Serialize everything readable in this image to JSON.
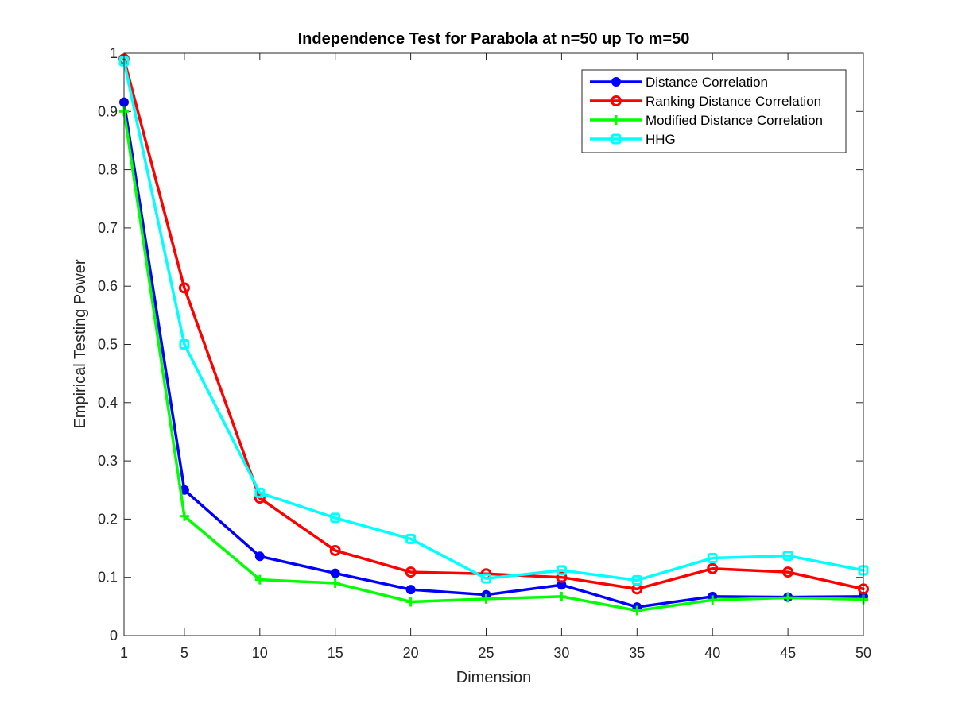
{
  "chart_data": {
    "type": "line",
    "title": "Independence Test for Parabola at n=50 up To m=50",
    "xlabel": "Dimension",
    "ylabel": "Empirical Testing Power",
    "x": [
      1,
      5,
      10,
      15,
      20,
      25,
      30,
      35,
      40,
      45,
      50
    ],
    "xlim": [
      1,
      50
    ],
    "ylim": [
      0,
      1
    ],
    "xticks": [
      "1",
      "5",
      "10",
      "15",
      "20",
      "25",
      "30",
      "35",
      "40",
      "45",
      "50"
    ],
    "yticks": [
      "0",
      "0.1",
      "0.2",
      "0.3",
      "0.4",
      "0.5",
      "0.6",
      "0.7",
      "0.8",
      "0.9",
      "1"
    ],
    "grid": false,
    "legend_position": "top-right",
    "series": [
      {
        "name": "Distance Correlation",
        "color": "#0000ff",
        "marker": "filled-circle",
        "values": [
          0.916,
          0.25,
          0.136,
          0.107,
          0.079,
          0.07,
          0.087,
          0.049,
          0.067,
          0.066,
          0.067
        ]
      },
      {
        "name": "Ranking Distance Correlation",
        "color": "#ff0000",
        "marker": "hollow-circle",
        "values": [
          0.99,
          0.597,
          0.236,
          0.146,
          0.109,
          0.106,
          0.1,
          0.08,
          0.115,
          0.109,
          0.08
        ]
      },
      {
        "name": "Modified Distance Correlation",
        "color": "#00ff00",
        "marker": "plus",
        "values": [
          0.9,
          0.205,
          0.096,
          0.09,
          0.058,
          0.063,
          0.067,
          0.043,
          0.061,
          0.065,
          0.062
        ]
      },
      {
        "name": "HHG",
        "color": "#00ffff",
        "marker": "hollow-square",
        "values": [
          0.986,
          0.5,
          0.245,
          0.202,
          0.166,
          0.098,
          0.112,
          0.095,
          0.133,
          0.137,
          0.112
        ]
      }
    ]
  }
}
